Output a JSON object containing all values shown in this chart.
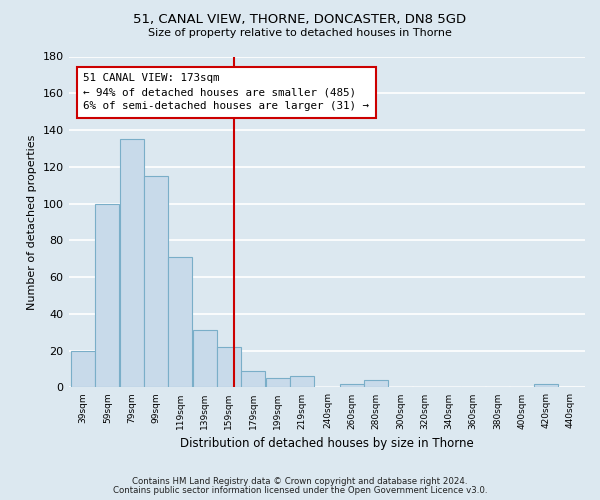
{
  "title": "51, CANAL VIEW, THORNE, DONCASTER, DN8 5GD",
  "subtitle": "Size of property relative to detached houses in Thorne",
  "xlabel": "Distribution of detached houses by size in Thorne",
  "ylabel": "Number of detached properties",
  "bar_color": "#c8daea",
  "bar_edge_color": "#7aaec8",
  "background_color": "#dce8f0",
  "grid_color": "#ffffff",
  "vline_x": 173,
  "vline_color": "#cc0000",
  "annotation_title": "51 CANAL VIEW: 173sqm",
  "annotation_line1": "← 94% of detached houses are smaller (485)",
  "annotation_line2": "6% of semi-detached houses are larger (31) →",
  "annotation_box_color": "#ffffff",
  "annotation_box_edge": "#cc0000",
  "bins": [
    39,
    59,
    79,
    99,
    119,
    139,
    159,
    179,
    199,
    219,
    240,
    260,
    280,
    300,
    320,
    340,
    360,
    380,
    400,
    420,
    440
  ],
  "counts": [
    20,
    100,
    135,
    115,
    71,
    31,
    22,
    9,
    5,
    6,
    0,
    2,
    4,
    0,
    0,
    0,
    0,
    0,
    0,
    2
  ],
  "ylim": [
    0,
    180
  ],
  "yticks": [
    0,
    20,
    40,
    60,
    80,
    100,
    120,
    140,
    160,
    180
  ],
  "xtick_labels": [
    "39sqm",
    "59sqm",
    "79sqm",
    "99sqm",
    "119sqm",
    "139sqm",
    "159sqm",
    "179sqm",
    "199sqm",
    "219sqm",
    "240sqm",
    "260sqm",
    "280sqm",
    "300sqm",
    "320sqm",
    "340sqm",
    "360sqm",
    "380sqm",
    "400sqm",
    "420sqm",
    "440sqm"
  ],
  "footer1": "Contains HM Land Registry data © Crown copyright and database right 2024.",
  "footer2": "Contains public sector information licensed under the Open Government Licence v3.0."
}
